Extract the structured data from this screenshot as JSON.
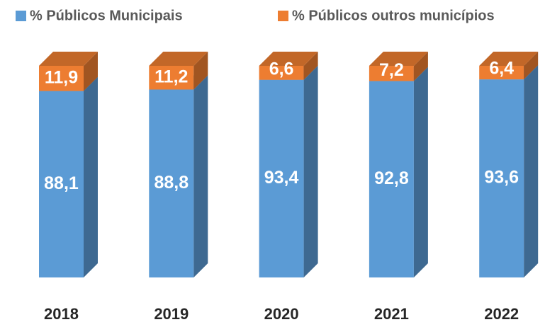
{
  "chart_data": {
    "type": "bar",
    "stacked": true,
    "categories": [
      "2018",
      "2019",
      "2020",
      "2021",
      "2022"
    ],
    "series": [
      {
        "name": "% Públicos Municipais",
        "color": "#5b9bd5",
        "values": [
          88.1,
          88.8,
          93.4,
          92.8,
          93.6
        ],
        "value_labels": [
          "88,1",
          "88,8",
          "93,4",
          "92,8",
          "93,6"
        ]
      },
      {
        "name": "% Públicos outros municípios",
        "color": "#ed7d31",
        "values": [
          11.9,
          11.2,
          6.6,
          7.2,
          6.4
        ],
        "value_labels": [
          "11,9",
          "11,2",
          "6,6",
          "7,2",
          "6,4"
        ]
      }
    ],
    "legend": "top"
  }
}
